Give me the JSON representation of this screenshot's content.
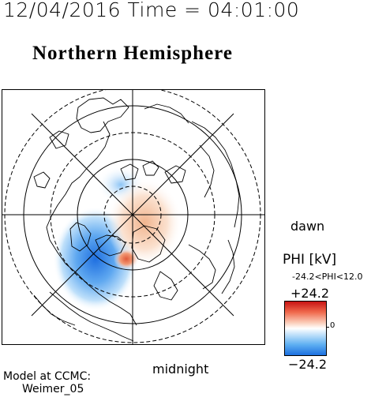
{
  "header": {
    "timestamp": "12/04/2016 Time = 04:01:00",
    "hemisphere_title": "Northern Hemisphere"
  },
  "map": {
    "direction_labels": {
      "right": "dawn",
      "bottom": "midnight"
    },
    "colors": {
      "positive": "#e0533c",
      "negative": "#2a7fe6",
      "coast": "#000000"
    }
  },
  "colorbar": {
    "title": "PHI [kV]",
    "range_text": "-24.2<PHI<12.0",
    "max_label": "+24.2",
    "zero_label": "0",
    "min_label": "−24.2"
  },
  "footer": {
    "model_line1": "Model at CCMC:",
    "model_line2": "Weimer_05"
  }
}
